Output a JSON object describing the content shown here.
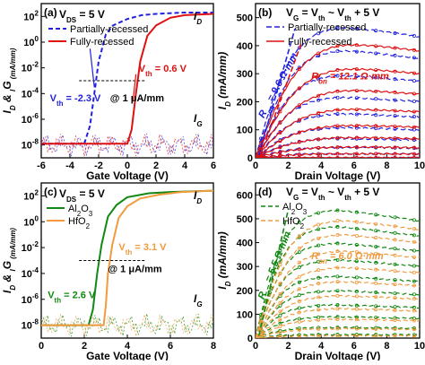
{
  "colors": {
    "blue": "#2222dd",
    "red": "#dd1111",
    "green": "#118811",
    "orange": "#f19a3e",
    "axis": "#000000"
  },
  "chart_data": [
    {
      "panel_label": "(a)",
      "type": "line",
      "xlabel": "Gate Voltage (V)",
      "ylabel_parts": [
        "I",
        "D",
        " & ",
        "I",
        "G",
        " (mA/mm)"
      ],
      "xlim": [
        -6,
        6
      ],
      "xticks": [
        -6,
        -4,
        -2,
        0,
        2,
        4,
        6
      ],
      "ylog": true,
      "ylim_log10": [
        -9,
        3
      ],
      "yticks_log10": [
        -8,
        -6,
        -4,
        -2,
        0,
        2
      ],
      "condition": {
        "label_parts": [
          "V",
          "DS",
          " = 5 V"
        ]
      },
      "curve_labels": [
        {
          "parts": [
            "I",
            "D"
          ]
        },
        {
          "parts": [
            "I",
            "G"
          ]
        }
      ],
      "legend_position": "top",
      "series": [
        {
          "name": "Partially-recessed",
          "color": "blue",
          "dash": "5,3",
          "x": [
            -6,
            -3.0,
            -2.6,
            -2.3,
            -2.0,
            -1.5,
            -1.0,
            0,
            1,
            2,
            4,
            6
          ],
          "y_log10": [
            -7.9,
            -7.9,
            -6.5,
            -4.0,
            -1.5,
            0.6,
            1.3,
            1.8,
            2.1,
            2.2,
            2.3,
            2.3
          ]
        },
        {
          "name": "Fully-recessed",
          "color": "red",
          "dash": "",
          "x": [
            -6,
            0,
            0.3,
            0.6,
            0.9,
            1.4,
            2,
            3,
            4,
            6
          ],
          "y_log10": [
            -7.9,
            -7.9,
            -6.8,
            -4.0,
            -1.5,
            0.5,
            1.3,
            1.9,
            2.1,
            2.2
          ]
        }
      ],
      "annotations": [
        {
          "parts": [
            "V",
            "th",
            " = 0.6 V"
          ],
          "color": "red"
        },
        {
          "parts": [
            "V",
            "th",
            " = -2.3 V"
          ],
          "color": "blue"
        },
        {
          "parts": [
            "@ 1 μA/mm"
          ],
          "color": "axis"
        }
      ]
    },
    {
      "panel_label": "(b)",
      "type": "line",
      "xlabel": "Drain Voltage (V)",
      "ylabel_parts": [
        "I",
        "D",
        " (mA/mm)"
      ],
      "xlim": [
        0,
        10
      ],
      "xticks": [
        0,
        2,
        4,
        6,
        8,
        10
      ],
      "ylim": [
        0,
        550
      ],
      "yticks": [
        0,
        100,
        200,
        300,
        400,
        500
      ],
      "condition": {
        "label_parts": [
          "V",
          "G",
          " = V",
          "th",
          " ~ V",
          "th",
          " + 5 V"
        ]
      },
      "legend_position": "top",
      "series_groups": [
        {
          "name": "Partially-recessed",
          "color": "blue",
          "dash": "6,3",
          "saturation_currents": [
            475,
            390,
            300,
            220,
            160,
            110,
            70,
            38,
            15,
            0
          ],
          "knee_voltage": 2.5
        },
        {
          "name": "Fully-recessed",
          "color": "red",
          "dash": "",
          "saturation_currents": [
            420,
            330,
            250,
            180,
            120,
            75,
            40,
            15,
            0
          ],
          "knee_voltage": 3.0
        }
      ],
      "annotations": [
        {
          "parts": [
            "R",
            "on",
            " = 9.6 Ω·mm"
          ],
          "color": "blue"
        },
        {
          "parts": [
            "R",
            "on",
            " = 12.1 Ω·mm"
          ],
          "color": "red"
        }
      ]
    },
    {
      "panel_label": "(c)",
      "type": "line",
      "xlabel": "Gate Voltage (V)",
      "ylabel_parts": [
        "I",
        "D",
        " & ",
        "I",
        "G",
        " (mA/mm)"
      ],
      "xlim": [
        0,
        8
      ],
      "xticks": [
        0,
        2,
        4,
        6,
        8
      ],
      "ylog": true,
      "ylim_log10": [
        -9,
        3
      ],
      "yticks_log10": [
        -8,
        -6,
        -4,
        -2,
        0,
        2
      ],
      "condition": {
        "label_parts": [
          "V",
          "DS",
          " = 5 V"
        ]
      },
      "curve_labels": [
        {
          "parts": [
            "I",
            "D"
          ]
        },
        {
          "parts": [
            "I",
            "G"
          ]
        }
      ],
      "legend_position": "top-left",
      "series": [
        {
          "name_parts": [
            "Al",
            "2",
            "O",
            "3"
          ],
          "color": "green",
          "dash": "",
          "x": [
            0,
            2.2,
            2.4,
            2.6,
            2.8,
            3.1,
            3.5,
            4,
            5,
            6,
            8
          ],
          "y_log10": [
            -8.0,
            -8.0,
            -6.8,
            -4.0,
            -1.8,
            0.4,
            1.3,
            1.9,
            2.2,
            2.3,
            2.4
          ]
        },
        {
          "name_parts": [
            "HfO",
            "2"
          ],
          "color": "orange",
          "dash": "",
          "x": [
            0,
            2.9,
            3.0,
            3.1,
            3.3,
            3.6,
            4,
            4.6,
            5.5,
            6.5,
            8
          ],
          "y_log10": [
            -8.0,
            -8.0,
            -6.5,
            -4.0,
            -1.8,
            0.3,
            1.2,
            1.8,
            2.1,
            2.3,
            2.4
          ]
        }
      ],
      "annotations": [
        {
          "parts": [
            "V",
            "th",
            " = 3.1 V"
          ],
          "color": "orange"
        },
        {
          "parts": [
            "V",
            "th",
            " = 2.6 V"
          ],
          "color": "green"
        },
        {
          "parts": [
            "@ 1 μA/mm"
          ],
          "color": "axis"
        }
      ]
    },
    {
      "panel_label": "(d)",
      "type": "line",
      "xlabel": "Drain Voltage (V)",
      "ylabel_parts": [
        "I",
        "D",
        " (mA/mm)"
      ],
      "xlim": [
        0,
        10
      ],
      "xticks": [
        0,
        2,
        4,
        6,
        8,
        10
      ],
      "ylim": [
        0,
        650
      ],
      "yticks": [
        0,
        100,
        200,
        300,
        400,
        500,
        600
      ],
      "condition": {
        "label_parts": [
          "V",
          "G",
          " = V",
          "th",
          " ~ V",
          "th",
          " + 5 V"
        ]
      },
      "legend_position": "top-left",
      "series_groups": [
        {
          "name_parts": [
            "Al",
            "2",
            "O",
            "3"
          ],
          "color": "green",
          "dash": "5,3",
          "saturation_currents": [
            540,
            470,
            400,
            330,
            260,
            200,
            140,
            90,
            45,
            15
          ],
          "knee_voltage": 2.0
        },
        {
          "name_parts": [
            "HfO",
            "2"
          ],
          "color": "orange",
          "dash": "5,3",
          "saturation_currents": [
            500,
            440,
            370,
            300,
            240,
            180,
            125,
            80,
            40,
            10
          ],
          "knee_voltage": 2.3
        }
      ],
      "annotations": [
        {
          "parts": [
            "R",
            "on",
            " = 5.5 Ω·mm"
          ],
          "color": "green"
        },
        {
          "parts": [
            "R",
            "on",
            " = 6.0 Ω·mm"
          ],
          "color": "orange"
        }
      ]
    }
  ]
}
